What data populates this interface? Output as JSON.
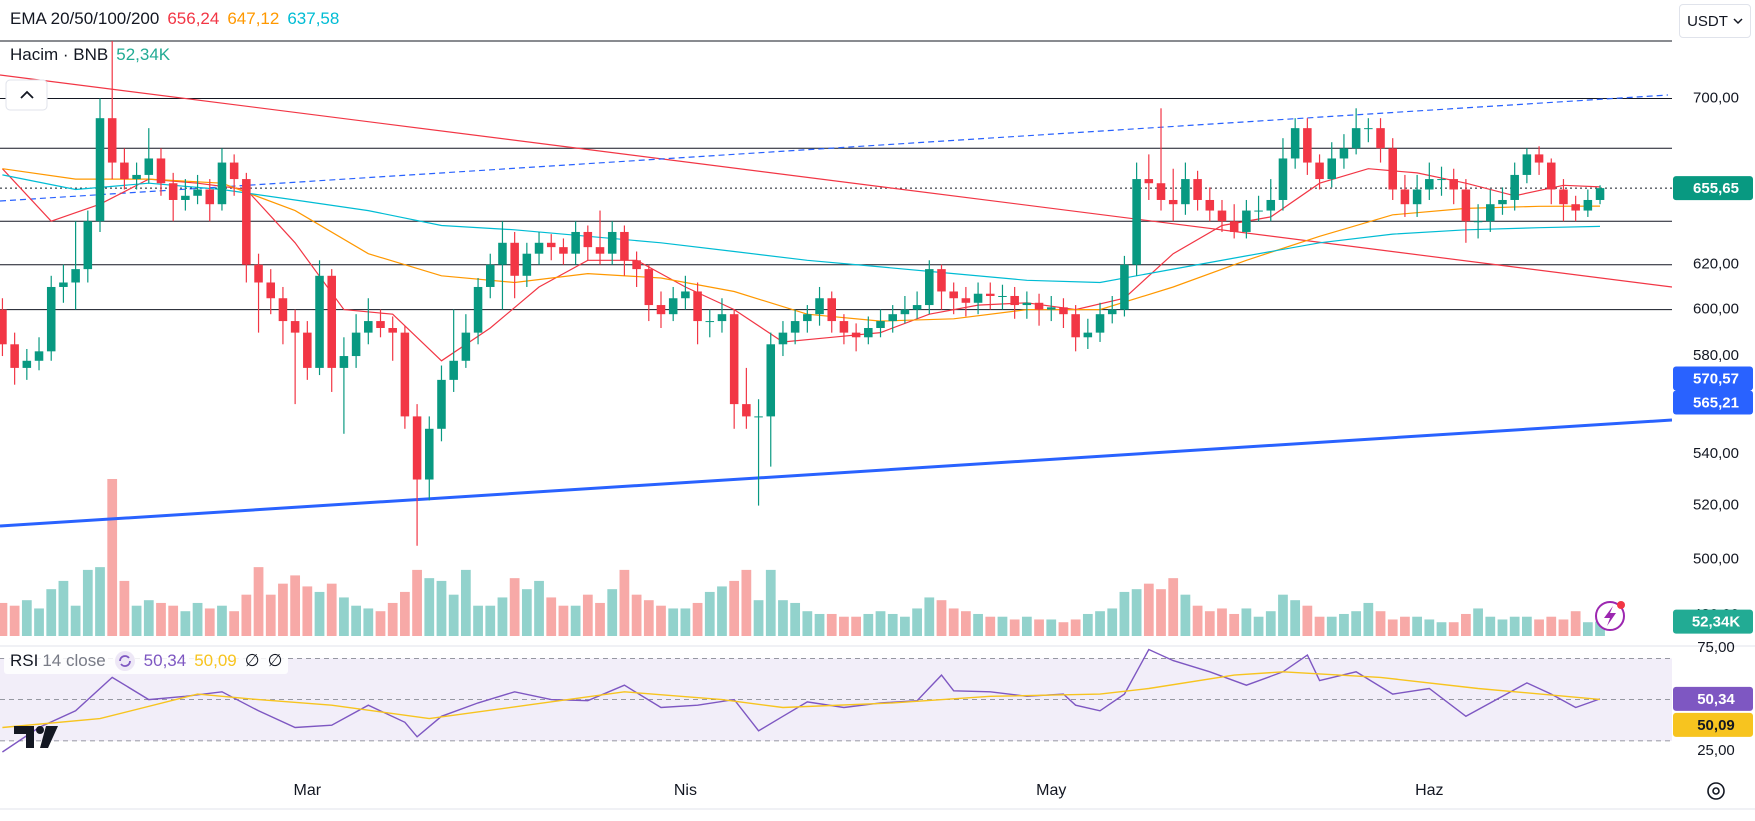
{
  "currency": "USDT",
  "chart_data": [
    {
      "type": "candlestick",
      "title": "EMA 20/50/100/200",
      "log": true,
      "up_color": "#089981",
      "down_color": "#f23645",
      "xlim": [
        -0.2,
        136.9
      ],
      "ylim": [
        469,
        730
      ],
      "xticks": [
        {
          "value": 25,
          "label": "Mar"
        },
        {
          "value": 56,
          "label": "Nis"
        },
        {
          "value": 86,
          "label": "May"
        },
        {
          "value": 117,
          "label": "Haz"
        }
      ],
      "yticks": [
        {
          "value": 700,
          "label": "700,00"
        },
        {
          "value": 620,
          "label": "620,00"
        },
        {
          "value": 600,
          "label": "600,00"
        },
        {
          "value": 580,
          "label": "580,00"
        },
        {
          "value": 540,
          "label": "540,00"
        },
        {
          "value": 520,
          "label": "520,00"
        },
        {
          "value": 500,
          "label": "500,00"
        },
        {
          "value": 480,
          "label": "480,00"
        }
      ],
      "levels": [
        700,
        675,
        640,
        620,
        600
      ],
      "last_price": {
        "value": 655.65,
        "label": "655,65"
      },
      "price_labels": [
        {
          "value": 570.57,
          "label": "570,57"
        },
        {
          "value": 565.21,
          "label": "565,21"
        }
      ],
      "open": [
        600,
        585,
        575,
        578,
        582,
        610,
        612,
        618,
        640,
        690,
        668,
        660,
        662,
        670,
        658,
        650,
        652,
        655,
        648,
        668,
        660,
        620,
        612,
        605,
        595,
        590,
        575,
        615,
        575,
        580,
        590,
        595,
        592,
        590,
        555,
        530,
        550,
        570,
        578,
        590,
        610,
        620,
        630,
        615,
        625,
        630,
        628,
        625,
        635,
        628,
        625,
        635,
        622,
        618,
        602,
        598,
        605,
        608,
        595,
        595,
        598,
        560,
        555,
        555,
        585,
        590,
        595,
        598,
        605,
        595,
        590,
        588,
        592,
        595,
        598,
        600,
        602,
        618,
        608,
        605,
        603,
        607,
        606,
        606,
        602,
        603,
        600,
        601,
        598,
        588,
        590,
        598,
        600,
        620,
        660,
        658,
        650,
        648,
        660,
        650,
        645,
        640,
        635,
        645,
        645,
        650,
        670,
        685,
        668,
        660,
        670,
        675,
        685,
        685,
        675,
        655,
        648,
        655,
        660,
        660,
        655,
        640,
        640,
        648,
        650,
        662,
        672,
        668,
        655,
        648,
        645,
        650
      ],
      "high": [
        605,
        590,
        583,
        588,
        615,
        620,
        640,
        645,
        700,
        730,
        675,
        668,
        685,
        675,
        663,
        660,
        662,
        660,
        675,
        672,
        663,
        625,
        618,
        610,
        600,
        595,
        622,
        618,
        588,
        598,
        605,
        600,
        597,
        593,
        560,
        555,
        576,
        600,
        598,
        614,
        625,
        640,
        635,
        630,
        635,
        634,
        632,
        640,
        638,
        645,
        640,
        638,
        626,
        620,
        608,
        610,
        615,
        612,
        600,
        605,
        600,
        575,
        562,
        590,
        595,
        600,
        602,
        610,
        608,
        598,
        594,
        597,
        600,
        602,
        606,
        608,
        622,
        620,
        612,
        610,
        612,
        612,
        611,
        610,
        608,
        607,
        606,
        605,
        602,
        596,
        603,
        606,
        624,
        668,
        672,
        695,
        665,
        668,
        664,
        656,
        650,
        648,
        650,
        652,
        660,
        680,
        690,
        690,
        672,
        678,
        682,
        695,
        690,
        690,
        680,
        662,
        662,
        668,
        666,
        665,
        660,
        648,
        655,
        656,
        668,
        675,
        676,
        670,
        660,
        652,
        655,
        657
      ],
      "low": [
        580,
        568,
        570,
        574,
        578,
        603,
        600,
        612,
        635,
        660,
        655,
        655,
        658,
        652,
        640,
        645,
        648,
        640,
        645,
        652,
        612,
        590,
        598,
        585,
        560,
        570,
        572,
        565,
        548,
        575,
        585,
        588,
        578,
        550,
        505,
        522,
        545,
        565,
        575,
        585,
        605,
        600,
        605,
        610,
        620,
        622,
        620,
        620,
        622,
        620,
        620,
        615,
        610,
        595,
        592,
        595,
        600,
        585,
        588,
        590,
        550,
        550,
        520,
        535,
        580,
        585,
        590,
        593,
        590,
        585,
        582,
        585,
        588,
        590,
        594,
        596,
        598,
        600,
        598,
        597,
        598,
        600,
        600,
        596,
        596,
        593,
        595,
        592,
        582,
        583,
        586,
        594,
        597,
        615,
        650,
        645,
        640,
        643,
        645,
        640,
        635,
        632,
        632,
        640,
        640,
        645,
        665,
        662,
        655,
        656,
        665,
        672,
        678,
        668,
        650,
        642,
        642,
        650,
        652,
        648,
        630,
        632,
        635,
        643,
        645,
        658,
        662,
        648,
        640,
        640,
        642,
        648
      ],
      "close": [
        585,
        575,
        578,
        582,
        610,
        612,
        618,
        640,
        690,
        668,
        660,
        662,
        670,
        658,
        650,
        652,
        655,
        648,
        668,
        660,
        620,
        612,
        605,
        595,
        590,
        575,
        615,
        575,
        580,
        590,
        595,
        592,
        590,
        555,
        530,
        550,
        570,
        578,
        590,
        610,
        620,
        630,
        615,
        625,
        630,
        628,
        625,
        635,
        628,
        625,
        635,
        622,
        618,
        602,
        598,
        605,
        608,
        595,
        595,
        598,
        560,
        555,
        555,
        585,
        590,
        595,
        598,
        605,
        595,
        590,
        588,
        592,
        595,
        598,
        600,
        602,
        618,
        608,
        605,
        603,
        607,
        606,
        606,
        602,
        603,
        600,
        601,
        598,
        588,
        590,
        598,
        600,
        620,
        660,
        658,
        650,
        648,
        660,
        650,
        645,
        640,
        635,
        645,
        645,
        650,
        670,
        685,
        668,
        660,
        670,
        675,
        685,
        685,
        675,
        655,
        648,
        655,
        660,
        660,
        655,
        640,
        640,
        648,
        650,
        662,
        672,
        668,
        655,
        648,
        645,
        650,
        655.65
      ],
      "series": [
        {
          "color": "#f23645",
          "last": {
            "value": 656.24,
            "label": "656,24"
          },
          "x": [
            0,
            4,
            8,
            12,
            16,
            20,
            24,
            28,
            32,
            36,
            40,
            44,
            48,
            52,
            56,
            60,
            64,
            68,
            72,
            76,
            80,
            84,
            88,
            92,
            96,
            100,
            104,
            108,
            112,
            116,
            120,
            124,
            128,
            131
          ],
          "values": [
            665,
            640,
            648,
            660,
            658,
            655,
            630,
            600,
            598,
            578,
            592,
            610,
            622,
            622,
            610,
            600,
            586,
            588,
            590,
            598,
            602,
            603,
            600,
            605,
            625,
            638,
            642,
            658,
            665,
            663,
            658,
            652,
            657,
            656.24
          ]
        },
        {
          "color": "#ff9800",
          "last": {
            "value": 647.12,
            "label": "647,12"
          },
          "x": [
            0,
            6,
            12,
            18,
            24,
            30,
            36,
            42,
            48,
            54,
            60,
            66,
            72,
            78,
            84,
            90,
            96,
            102,
            108,
            114,
            120,
            126,
            131
          ],
          "values": [
            665,
            660,
            660,
            658,
            645,
            625,
            615,
            612,
            616,
            614,
            608,
            598,
            595,
            596,
            600,
            600,
            610,
            622,
            633,
            643,
            646,
            647,
            647.12
          ]
        },
        {
          "color": "#00bcd4",
          "last": {
            "value": 637.58,
            "label": "637,58"
          },
          "x": [
            0,
            6,
            12,
            18,
            24,
            30,
            36,
            42,
            48,
            54,
            60,
            66,
            72,
            78,
            84,
            90,
            96,
            102,
            108,
            114,
            120,
            126,
            131
          ],
          "values": [
            662,
            655,
            658,
            655,
            650,
            645,
            638,
            636,
            633,
            630,
            626,
            622,
            619,
            616,
            613,
            612,
            618,
            624,
            630,
            634,
            636,
            637,
            637.58
          ]
        }
      ],
      "volume": {
        "title": "Hacim · BNB",
        "last": {
          "value": 52.34,
          "label": "52,34K"
        },
        "ylim": [
          0,
          2160
        ],
        "up_color": "#92d2cc",
        "down_color": "#f7a9a7",
        "label_color": "#22ab94",
        "values": [
          120,
          110,
          130,
          100,
          170,
          200,
          110,
          240,
          250,
          570,
          200,
          110,
          130,
          120,
          110,
          90,
          120,
          100,
          110,
          90,
          150,
          250,
          150,
          190,
          220,
          180,
          160,
          190,
          140,
          110,
          100,
          90,
          120,
          160,
          240,
          210,
          200,
          150,
          240,
          110,
          110,
          140,
          210,
          170,
          200,
          140,
          110,
          110,
          150,
          120,
          170,
          240,
          150,
          130,
          110,
          100,
          100,
          120,
          160,
          180,
          200,
          240,
          130,
          240,
          130,
          120,
          90,
          80,
          80,
          70,
          70,
          80,
          90,
          80,
          70,
          100,
          140,
          130,
          100,
          90,
          80,
          70,
          70,
          60,
          70,
          60,
          60,
          50,
          60,
          80,
          90,
          100,
          160,
          170,
          190,
          170,
          210,
          150,
          110,
          90,
          100,
          80,
          100,
          70,
          90,
          150,
          130,
          110,
          70,
          70,
          80,
          90,
          120,
          90,
          60,
          70,
          70,
          60,
          50,
          50,
          80,
          100,
          70,
          60,
          70,
          70,
          60,
          70,
          60,
          90,
          50,
          52.34
        ]
      }
    },
    {
      "type": "line",
      "title": "RSI",
      "subtitle": "14 close",
      "extras": [
        "∅",
        "∅"
      ],
      "xlim": [
        -0.2,
        136.9
      ],
      "ylim": [
        12,
        76
      ],
      "yticks": [
        {
          "value": 75,
          "label": "75,00"
        },
        {
          "value": 25,
          "label": "25,00"
        }
      ],
      "bands": [
        70,
        50,
        30
      ],
      "band_color": "#7e57c2",
      "series": [
        {
          "color": "#7e57c2",
          "last": {
            "value": 50.34,
            "label": "50,34"
          },
          "x": [
            0,
            3,
            6,
            9,
            12,
            15,
            18,
            21,
            24,
            27,
            30,
            33,
            34,
            36,
            39,
            42,
            45,
            48,
            51,
            54,
            57,
            60,
            62,
            64,
            66,
            69,
            72,
            75,
            77,
            78,
            81,
            84,
            87,
            88,
            90,
            92,
            94,
            96,
            99,
            102,
            105,
            107,
            108,
            111,
            114,
            117,
            120,
            123,
            125,
            127,
            129,
            131
          ],
          "values": [
            24.6,
            36.5,
            44.6,
            60.8,
            50,
            51.6,
            53.8,
            44.6,
            36.5,
            37.6,
            47.3,
            39,
            32,
            41.9,
            48.4,
            53.8,
            50,
            49.5,
            57,
            46.2,
            47.3,
            50,
            34.9,
            41.9,
            48.9,
            46.2,
            48.4,
            49.5,
            61.9,
            54.3,
            53.8,
            51.6,
            52.7,
            47.3,
            44.6,
            52.7,
            74.3,
            68.9,
            63.5,
            57,
            63.5,
            71.6,
            59.2,
            63.5,
            52.7,
            55.4,
            41.9,
            51.6,
            58.1,
            52.7,
            46.2,
            50.34
          ]
        },
        {
          "color": "#f7c41f",
          "last": {
            "value": 50.09,
            "label": "50,09"
          },
          "x": [
            0,
            8,
            16,
            21,
            27,
            35,
            43,
            51,
            59,
            64,
            73,
            81,
            90,
            94,
            101,
            105,
            113,
            121,
            131
          ],
          "values": [
            36.5,
            40.8,
            52.7,
            50,
            47.3,
            40.8,
            47.3,
            53.8,
            50,
            46.2,
            48.4,
            51.6,
            52.7,
            55.4,
            61.9,
            63.5,
            60.8,
            55.4,
            50.09
          ]
        }
      ]
    }
  ]
}
